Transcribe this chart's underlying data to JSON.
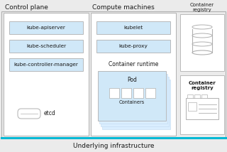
{
  "bg_color": "#ebebeb",
  "white": "#ffffff",
  "blue_box": "#d0e8f8",
  "border_color": "#b0b0b0",
  "cyan_line": "#00b8d4",
  "text_dark": "#1a1a1a",
  "title": "Underlying infrastructure",
  "control_plane_label": "Control plane",
  "compute_label": "Compute machines",
  "container_registry_label": "Container\nregistry",
  "container_runtime_label": "Container runtime",
  "pod_label": "Pod",
  "containers_label": "Containers",
  "etcd_label": "etcd",
  "cp_boxes": [
    "kube-apiserver",
    "kube-scheduler",
    "kube-controller-manager"
  ],
  "cm_boxes": [
    "kubelet",
    "kube-proxy"
  ]
}
